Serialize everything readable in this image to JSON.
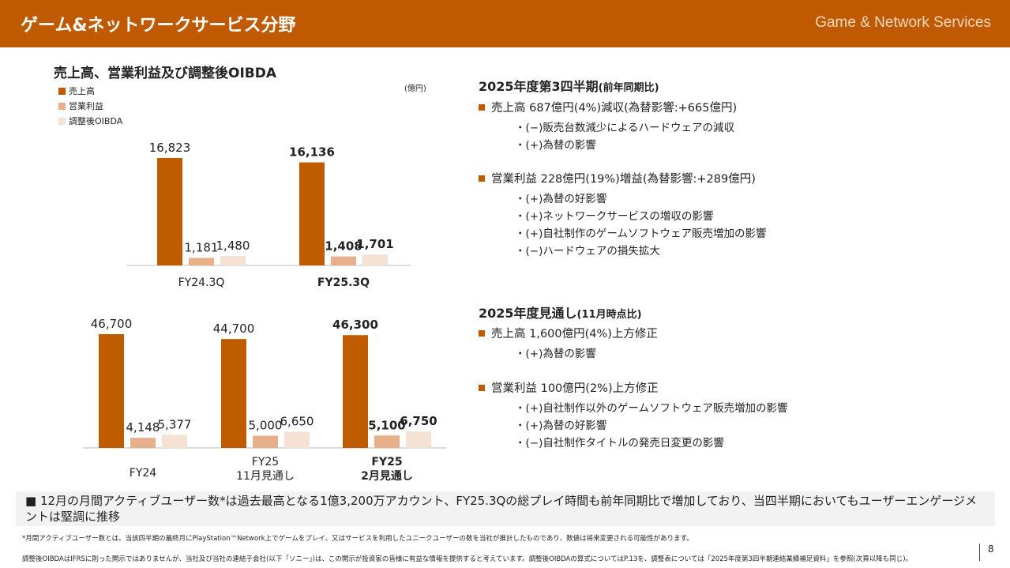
{
  "header": {
    "title": "ゲーム&ネットワークサービス分野",
    "english": "Game & Network Services"
  },
  "chart_title": "売上高、営業利益及び調整後OIBDA",
  "unit": "(億円)",
  "colors": {
    "sales": "#C05C00",
    "op": "#E8B08A",
    "oibda": "#F6E1D5",
    "accent": "#C05A00"
  },
  "legend": [
    "売上高",
    "営業利益",
    "調整後OIBDA"
  ],
  "chart_data": [
    {
      "type": "bar",
      "categories": [
        "FY24.3Q",
        "FY25.3Q"
      ],
      "series": [
        {
          "name": "売上高",
          "values": [
            16823,
            16136
          ]
        },
        {
          "name": "営業利益",
          "values": [
            1181,
            1408
          ]
        },
        {
          "name": "調整後OIBDA",
          "values": [
            1480,
            1701
          ]
        }
      ],
      "data_labels": [
        [
          "16,823",
          "1,181",
          "1,480"
        ],
        [
          "16,136",
          "1,408",
          "1,701"
        ]
      ],
      "bold_category": 1,
      "ylabel": "(億円)"
    },
    {
      "type": "bar",
      "categories": [
        "FY24",
        "FY25\n11月見通し",
        "FY25\n2月見通し"
      ],
      "series": [
        {
          "name": "売上高",
          "values": [
            46700,
            44700,
            46300
          ]
        },
        {
          "name": "営業利益",
          "values": [
            4148,
            5000,
            5100
          ]
        },
        {
          "name": "調整後OIBDA",
          "values": [
            5377,
            6650,
            6750
          ]
        }
      ],
      "data_labels": [
        [
          "46,700",
          "4,148",
          "5,377"
        ],
        [
          "44,700",
          "5,000",
          "6,650"
        ],
        [
          "46,300",
          "5,100",
          "6,750"
        ]
      ],
      "bold_category": 2
    }
  ],
  "q3": {
    "title": "2025年度第3四半期",
    "title_note": "(前年同期比)",
    "items": [
      {
        "label": "売上高 687億円(4%)減収(為替影響:+665億円)",
        "subs": [
          "・(−)販売台数減少によるハードウェアの減収",
          "・(+)為替の影響"
        ]
      },
      {
        "label": "営業利益 228億円(19%)増益(為替影響:+289億円)",
        "subs": [
          "・(+)為替の好影響",
          "・(+)ネットワークサービスの増収の影響",
          "・(+)自社制作のゲームソフトウェア販売増加の影響",
          "・(−)ハードウェアの損失拡大"
        ]
      }
    ]
  },
  "fy": {
    "title": "2025年度見通し",
    "title_note": "(11月時点比)",
    "items": [
      {
        "label": "売上高 1,600億円(4%)上方修正",
        "subs": [
          "・(+)為替の影響"
        ]
      },
      {
        "label": "営業利益 100億円(2%)上方修正",
        "subs": [
          "・(+)自社制作以外のゲームソフトウェア販売増加の影響",
          "・(+)為替の好影響",
          "・(−)自社制作タイトルの発売日変更の影響"
        ]
      }
    ]
  },
  "banner": "■ 12月の月間アクティブユーザー数*は過去最高となる1億3,200万アカウント、FY25.3Qの総プレイ時間も前年同期比で増加しており、当四半期においてもユーザーエンゲージメントは堅調に推移",
  "footnotes": [
    "*月間アクティブユーザー数とは、当該四半期の最終月にPlayStation™Network上でゲームをプレイ、又はサービスを利用したユニークユーザーの数を当社が推計したものであり、数値は将来変更される可能性があります。",
    "調整後OIBDAはIFRSに則った開示ではありませんが、当社及び当社の連結子会社(以下「ソニー」)は、この開示が投資家の皆様に有益な情報を提供すると考えています。調整後OIBDAの算式についてはP.13を、調整表については「2025年度第3四半期連結業績補足資料」を参照(次頁以降も同じ)。"
  ],
  "page": "8"
}
